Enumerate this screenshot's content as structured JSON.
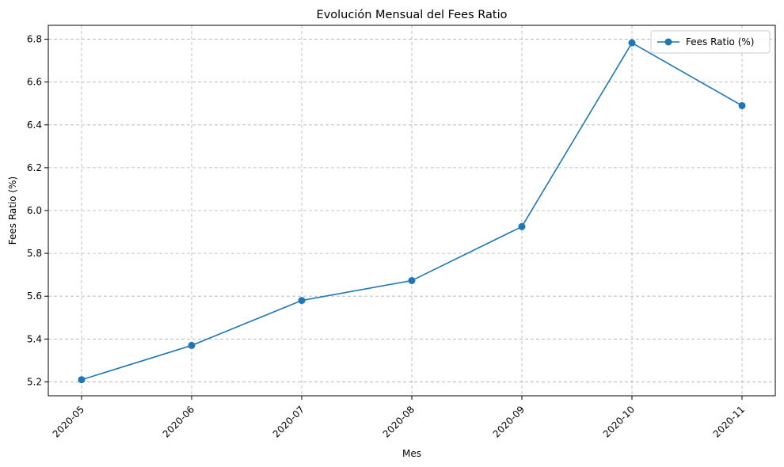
{
  "chart_data": {
    "type": "line",
    "title": "Evolución Mensual del Fees Ratio",
    "xlabel": "Mes",
    "ylabel": "Fees Ratio (%)",
    "categories": [
      "2020-05",
      "2020-06",
      "2020-07",
      "2020-08",
      "2020-09",
      "2020-10",
      "2020-11"
    ],
    "series": [
      {
        "name": "Fees Ratio (%)",
        "color": "#1f77b4",
        "marker": "circle",
        "values": [
          5.21,
          5.37,
          5.58,
          5.673,
          5.925,
          6.783,
          6.49
        ]
      }
    ],
    "yticks": [
      "5.2",
      "5.4",
      "5.6",
      "5.8",
      "6.0",
      "6.2",
      "6.4",
      "6.6",
      "6.8"
    ],
    "ylim": [
      5.135,
      6.865
    ],
    "grid": true,
    "grid_style": "dashed",
    "legend_position": "top-right",
    "x_tick_rotation": 45
  }
}
